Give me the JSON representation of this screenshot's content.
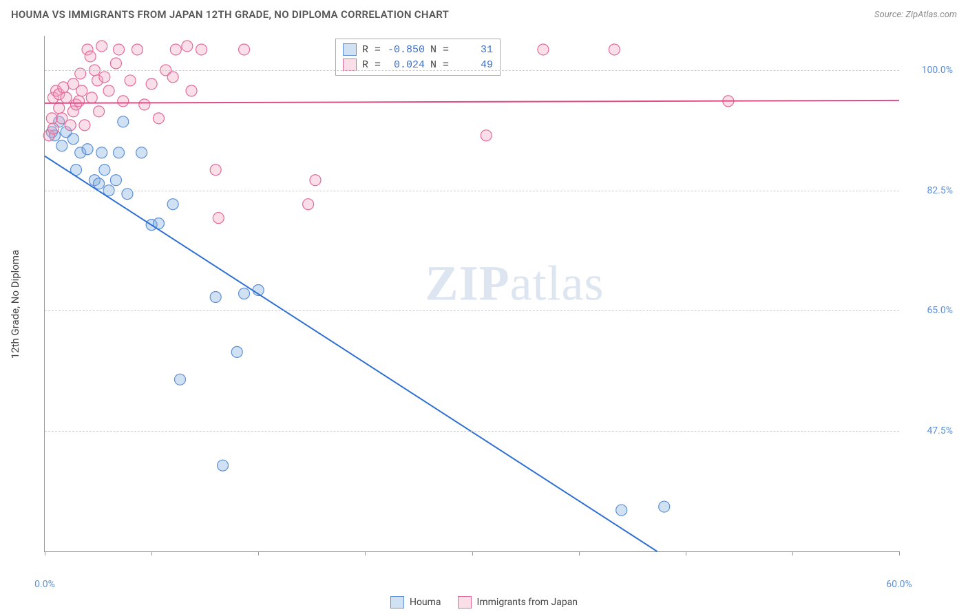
{
  "title": "HOUMA VS IMMIGRANTS FROM JAPAN 12TH GRADE, NO DIPLOMA CORRELATION CHART",
  "source": "Source: ZipAtlas.com",
  "ylabel": "12th Grade, No Diploma",
  "watermark_a": "ZIP",
  "watermark_b": "atlas",
  "chart": {
    "type": "scatter",
    "xlim": [
      0,
      60
    ],
    "ylim": [
      30,
      105
    ],
    "xtick_positions": [
      0,
      7.5,
      15,
      22.5,
      30,
      37.5,
      45,
      52.5,
      60
    ],
    "xtick_labels_shown": {
      "0": "0.0%",
      "60": "60.0%"
    },
    "ytick_positions": [
      47.5,
      65.0,
      82.5,
      100.0
    ],
    "ytick_labels": [
      "47.5%",
      "65.0%",
      "82.5%",
      "100.0%"
    ],
    "grid_color": "#cccccc",
    "axis_color": "#999999",
    "background_color": "#ffffff",
    "label_color": "#5b8fd6",
    "series": [
      {
        "name": "Houma",
        "color_fill": "rgba(120,170,220,0.35)",
        "color_stroke": "#5b8fd6",
        "marker_radius": 8,
        "R": "-0.850",
        "N": "31",
        "regression": {
          "x1": 0,
          "y1": 87.5,
          "x2": 43,
          "y2": 30,
          "color": "#2e6fd1",
          "width": 2
        },
        "points": [
          [
            0.5,
            91
          ],
          [
            0.7,
            90.5
          ],
          [
            1,
            92.5
          ],
          [
            1.2,
            89
          ],
          [
            1.5,
            91
          ],
          [
            2,
            90
          ],
          [
            2.2,
            85.5
          ],
          [
            2.5,
            88
          ],
          [
            3,
            88.5
          ],
          [
            3.5,
            84
          ],
          [
            3.8,
            83.5
          ],
          [
            4,
            88
          ],
          [
            4.2,
            85.5
          ],
          [
            4.5,
            82.5
          ],
          [
            5,
            84
          ],
          [
            5.2,
            88
          ],
          [
            5.5,
            92.5
          ],
          [
            5.8,
            82
          ],
          [
            6.8,
            88
          ],
          [
            7.5,
            77.5
          ],
          [
            8,
            77.7
          ],
          [
            9,
            80.5
          ],
          [
            9.5,
            55
          ],
          [
            12,
            67
          ],
          [
            12.5,
            42.5
          ],
          [
            13.5,
            59
          ],
          [
            14,
            67.5
          ],
          [
            15,
            68
          ],
          [
            40.5,
            36
          ],
          [
            43.5,
            36.5
          ]
        ]
      },
      {
        "name": "Immigrants from Japan",
        "color_fill": "rgba(240,160,190,0.35)",
        "color_stroke": "#e26a9a",
        "marker_radius": 8,
        "R": "0.024",
        "N": "49",
        "regression": {
          "x1": 0,
          "y1": 95.2,
          "x2": 60,
          "y2": 95.6,
          "color": "#e04a85",
          "width": 2
        },
        "points": [
          [
            0.3,
            90.5
          ],
          [
            0.5,
            93
          ],
          [
            0.6,
            96
          ],
          [
            0.6,
            91.5
          ],
          [
            0.8,
            97
          ],
          [
            1,
            94.5
          ],
          [
            1,
            96.5
          ],
          [
            1.2,
            93
          ],
          [
            1.3,
            97.5
          ],
          [
            1.5,
            96
          ],
          [
            1.8,
            92
          ],
          [
            2,
            94
          ],
          [
            2,
            98
          ],
          [
            2.2,
            95
          ],
          [
            2.4,
            95.5
          ],
          [
            2.5,
            99.5
          ],
          [
            2.6,
            97
          ],
          [
            2.8,
            92
          ],
          [
            3,
            103
          ],
          [
            3.2,
            102
          ],
          [
            3.3,
            96
          ],
          [
            3.5,
            100
          ],
          [
            3.7,
            98.5
          ],
          [
            3.8,
            94
          ],
          [
            4,
            103.5
          ],
          [
            4.2,
            99
          ],
          [
            4.5,
            97
          ],
          [
            5,
            101
          ],
          [
            5.2,
            103
          ],
          [
            5.5,
            95.5
          ],
          [
            6,
            98.5
          ],
          [
            6.5,
            103
          ],
          [
            7,
            95
          ],
          [
            7.5,
            98
          ],
          [
            8,
            93
          ],
          [
            8.5,
            100
          ],
          [
            9,
            99
          ],
          [
            9.2,
            103
          ],
          [
            10,
            103.5
          ],
          [
            10.3,
            97
          ],
          [
            11,
            103
          ],
          [
            12,
            85.5
          ],
          [
            12.2,
            78.5
          ],
          [
            14,
            103
          ],
          [
            18.5,
            80.5
          ],
          [
            19,
            84
          ],
          [
            31,
            90.5
          ],
          [
            35,
            103
          ],
          [
            40,
            103
          ],
          [
            48,
            95.5
          ]
        ]
      }
    ]
  },
  "legend_top_layout": [
    "R =",
    "N ="
  ],
  "legend_bottom": [
    "Houma",
    "Immigrants from Japan"
  ]
}
